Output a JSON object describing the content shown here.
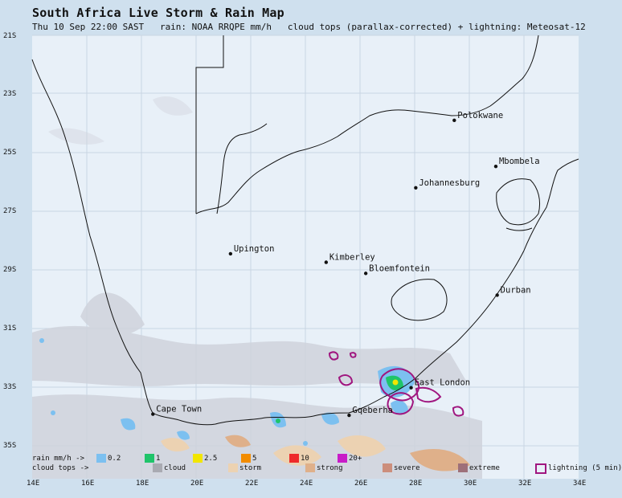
{
  "title": "South Africa Live Storm & Rain Map",
  "subtitle": "Thu 10 Sep 22:00 SAST   rain: NOAA RRQPE mm/h   cloud tops (parallax-corrected) + lightning: Meteosat-12",
  "lat_labels": [
    "21S",
    "23S",
    "25S",
    "27S",
    "29S",
    "31S",
    "33S",
    "35S"
  ],
  "lon_labels": [
    "14E",
    "16E",
    "18E",
    "20E",
    "22E",
    "24E",
    "26E",
    "28E",
    "30E",
    "32E",
    "34E"
  ],
  "cities": [
    {
      "name": "Polokwane",
      "lon": 29.45,
      "lat": -23.9
    },
    {
      "name": "Mbombela",
      "lon": 30.97,
      "lat": -25.47
    },
    {
      "name": "Johannesburg",
      "lon": 28.04,
      "lat": -26.2
    },
    {
      "name": "Upington",
      "lon": 21.26,
      "lat": -28.45
    },
    {
      "name": "Kimberley",
      "lon": 24.76,
      "lat": -28.74
    },
    {
      "name": "Bloemfontein",
      "lon": 26.21,
      "lat": -29.12
    },
    {
      "name": "Durban",
      "lon": 31.02,
      "lat": -29.86
    },
    {
      "name": "East London",
      "lon": 27.87,
      "lat": -33.02
    },
    {
      "name": "Cape Town",
      "lon": 18.42,
      "lat": -33.92
    },
    {
      "name": "Gqeberha",
      "lon": 25.6,
      "lat": -33.96
    }
  ],
  "legend": {
    "rain_label": "rain mm/h ->",
    "cloud_label": "cloud tops ->",
    "rain_items": [
      {
        "label": "0.2",
        "color": "#7cc0f0"
      },
      {
        "label": "1",
        "color": "#1fc46a"
      },
      {
        "label": "2.5",
        "color": "#f2e600"
      },
      {
        "label": "5",
        "color": "#f28c00"
      },
      {
        "label": "10",
        "color": "#ee2a2a"
      },
      {
        "label": "20+",
        "color": "#c81cc8"
      }
    ],
    "cloud_items": [
      {
        "label": "cloud",
        "color": "#a9aab2"
      },
      {
        "label": "storm",
        "color": "#ecd2b2"
      },
      {
        "label": "strong",
        "color": "#dfb08a"
      },
      {
        "label": "severe",
        "color": "#cc8e7c"
      },
      {
        "label": "extreme",
        "color": "#9e7079"
      }
    ],
    "lightning_label": "lightning (5 min)",
    "lightning_color": "#a0167f"
  }
}
